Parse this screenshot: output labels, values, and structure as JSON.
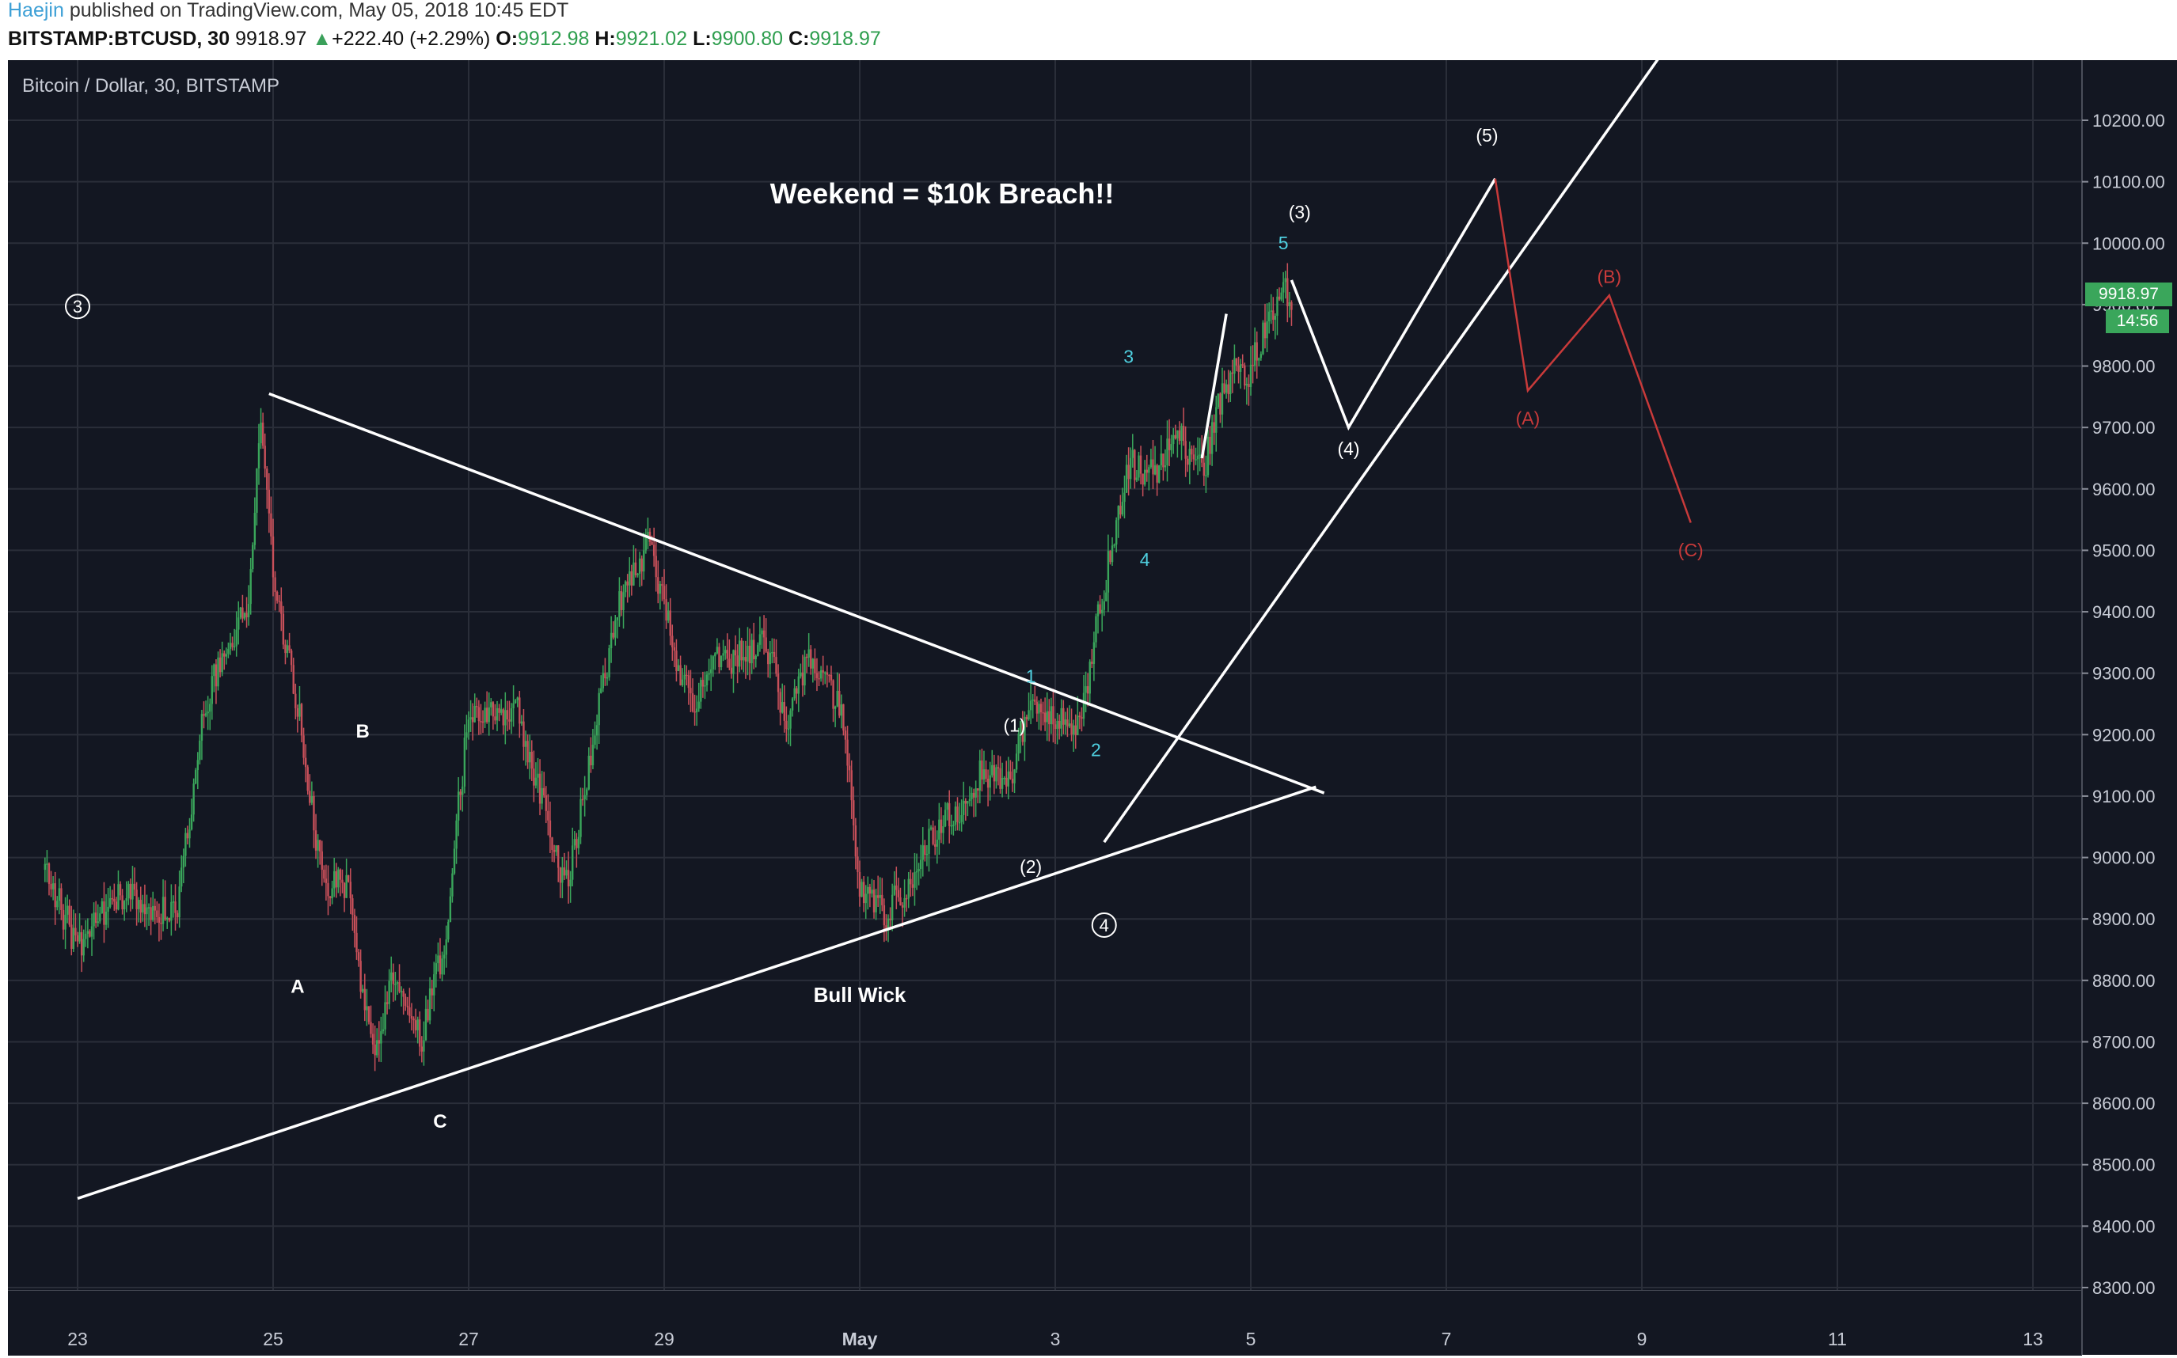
{
  "header": {
    "author": "Haejin",
    "publish_text": " published on TradingView.com, May 05, 2018 10:45 EDT",
    "symbol": "BITSTAMP:BTCUSD, 30",
    "last": "9918.97",
    "change": "+222.40 (+2.29%)",
    "open_label": "O:",
    "open": "9912.98",
    "high_label": "H:",
    "high": "9921.02",
    "low_label": "L:",
    "low": "9900.80",
    "close_label": "C:",
    "close": "9918.97"
  },
  "chart": {
    "legend": "Bitcoin / Dollar, 30, BITSTAMP",
    "price_tag": "9918.97",
    "timer_tag": "14:56",
    "colors": {
      "background": "#131722",
      "up": "#3aa65b",
      "down": "#c8505a",
      "drawing": "#ffffff",
      "wave_cyan": "#4fd0e0",
      "wave_red": "#c83a3a"
    }
  },
  "chart_data": {
    "type": "candlestick",
    "symbol": "BITSTAMP:BTCUSD",
    "interval": "30",
    "ylim": [
      8230,
      10330
    ],
    "yticks": [
      "8300.00",
      "8400.00",
      "8500.00",
      "8600.00",
      "8700.00",
      "8800.00",
      "8900.00",
      "9000.00",
      "9100.00",
      "9200.00",
      "9300.00",
      "9400.00",
      "9500.00",
      "9600.00",
      "9700.00",
      "9800.00",
      "9900.00",
      "10000.00",
      "10100.00",
      "10200.00"
    ],
    "xticks": [
      "23",
      "25",
      "27",
      "29",
      "May",
      "3",
      "5",
      "7",
      "9",
      "11",
      "13"
    ],
    "price_path": [
      [
        "Apr 22 16:00",
        8980
      ],
      [
        "Apr 23 00:00",
        8850
      ],
      [
        "Apr 23 12:00",
        8950
      ],
      [
        "Apr 24 00:00",
        8900
      ],
      [
        "Apr 24 06:00",
        9200
      ],
      [
        "Apr 24 12:00",
        9350
      ],
      [
        "Apr 24 18:00",
        9420
      ],
      [
        "Apr 24 21:00",
        9740
      ],
      [
        "Apr 25 00:00",
        9450
      ],
      [
        "Apr 25 06:00",
        9250
      ],
      [
        "Apr 25 12:00",
        8950
      ],
      [
        "Apr 25 18:00",
        8960
      ],
      [
        "Apr 26 00:00",
        8680
      ],
      [
        "Apr 26 06:00",
        8820
      ],
      [
        "Apr 26 12:00",
        8700
      ],
      [
        "Apr 26 18:00",
        8860
      ],
      [
        "Apr 27 00:00",
        9250
      ],
      [
        "Apr 27 12:00",
        9240
      ],
      [
        "Apr 28 00:00",
        8950
      ],
      [
        "Apr 28 06:00",
        9180
      ],
      [
        "Apr 28 12:00",
        9400
      ],
      [
        "Apr 28 20:00",
        9510
      ],
      [
        "Apr 29 06:00",
        9250
      ],
      [
        "Apr 29 12:00",
        9320
      ],
      [
        "Apr 30 00:00",
        9350
      ],
      [
        "Apr 30 06:00",
        9230
      ],
      [
        "Apr 30 12:00",
        9330
      ],
      [
        "Apr 30 20:00",
        9230
      ],
      [
        "May 1 00:00",
        8950
      ],
      [
        "May 1 06:00",
        8900
      ],
      [
        "May 1 12:00",
        8960
      ],
      [
        "May 1 18:00",
        9040
      ],
      [
        "May 2 00:00",
        9080
      ],
      [
        "May 2 06:00",
        9150
      ],
      [
        "May 2 12:00",
        9120
      ],
      [
        "May 2 18:00",
        9250
      ],
      [
        "May 3 00:00",
        9220
      ],
      [
        "May 3 06:00",
        9220
      ],
      [
        "May 3 12:00",
        9450
      ],
      [
        "May 3 18:00",
        9640
      ],
      [
        "May 4 00:00",
        9620
      ],
      [
        "May 4 06:00",
        9700
      ],
      [
        "May 4 12:00",
        9630
      ],
      [
        "May 4 18:00",
        9780
      ],
      [
        "May 5 00:00",
        9800
      ],
      [
        "May 5 06:00",
        9900
      ],
      [
        "May 5 10:00",
        9919
      ]
    ],
    "annotations": {
      "title_note": "Weekend = $10k Breach!!",
      "bull_wick": "Bull Wick",
      "circled": [
        "3",
        "4"
      ],
      "corrective": [
        "A",
        "B",
        "C"
      ],
      "impulse_white": [
        "(1)",
        "(2)",
        "(3)",
        "(4)",
        "(5)"
      ],
      "impulse_cyan": [
        "1",
        "2",
        "3",
        "4",
        "5"
      ],
      "abc_red": [
        "(A)",
        "(B)",
        "(C)"
      ]
    }
  }
}
